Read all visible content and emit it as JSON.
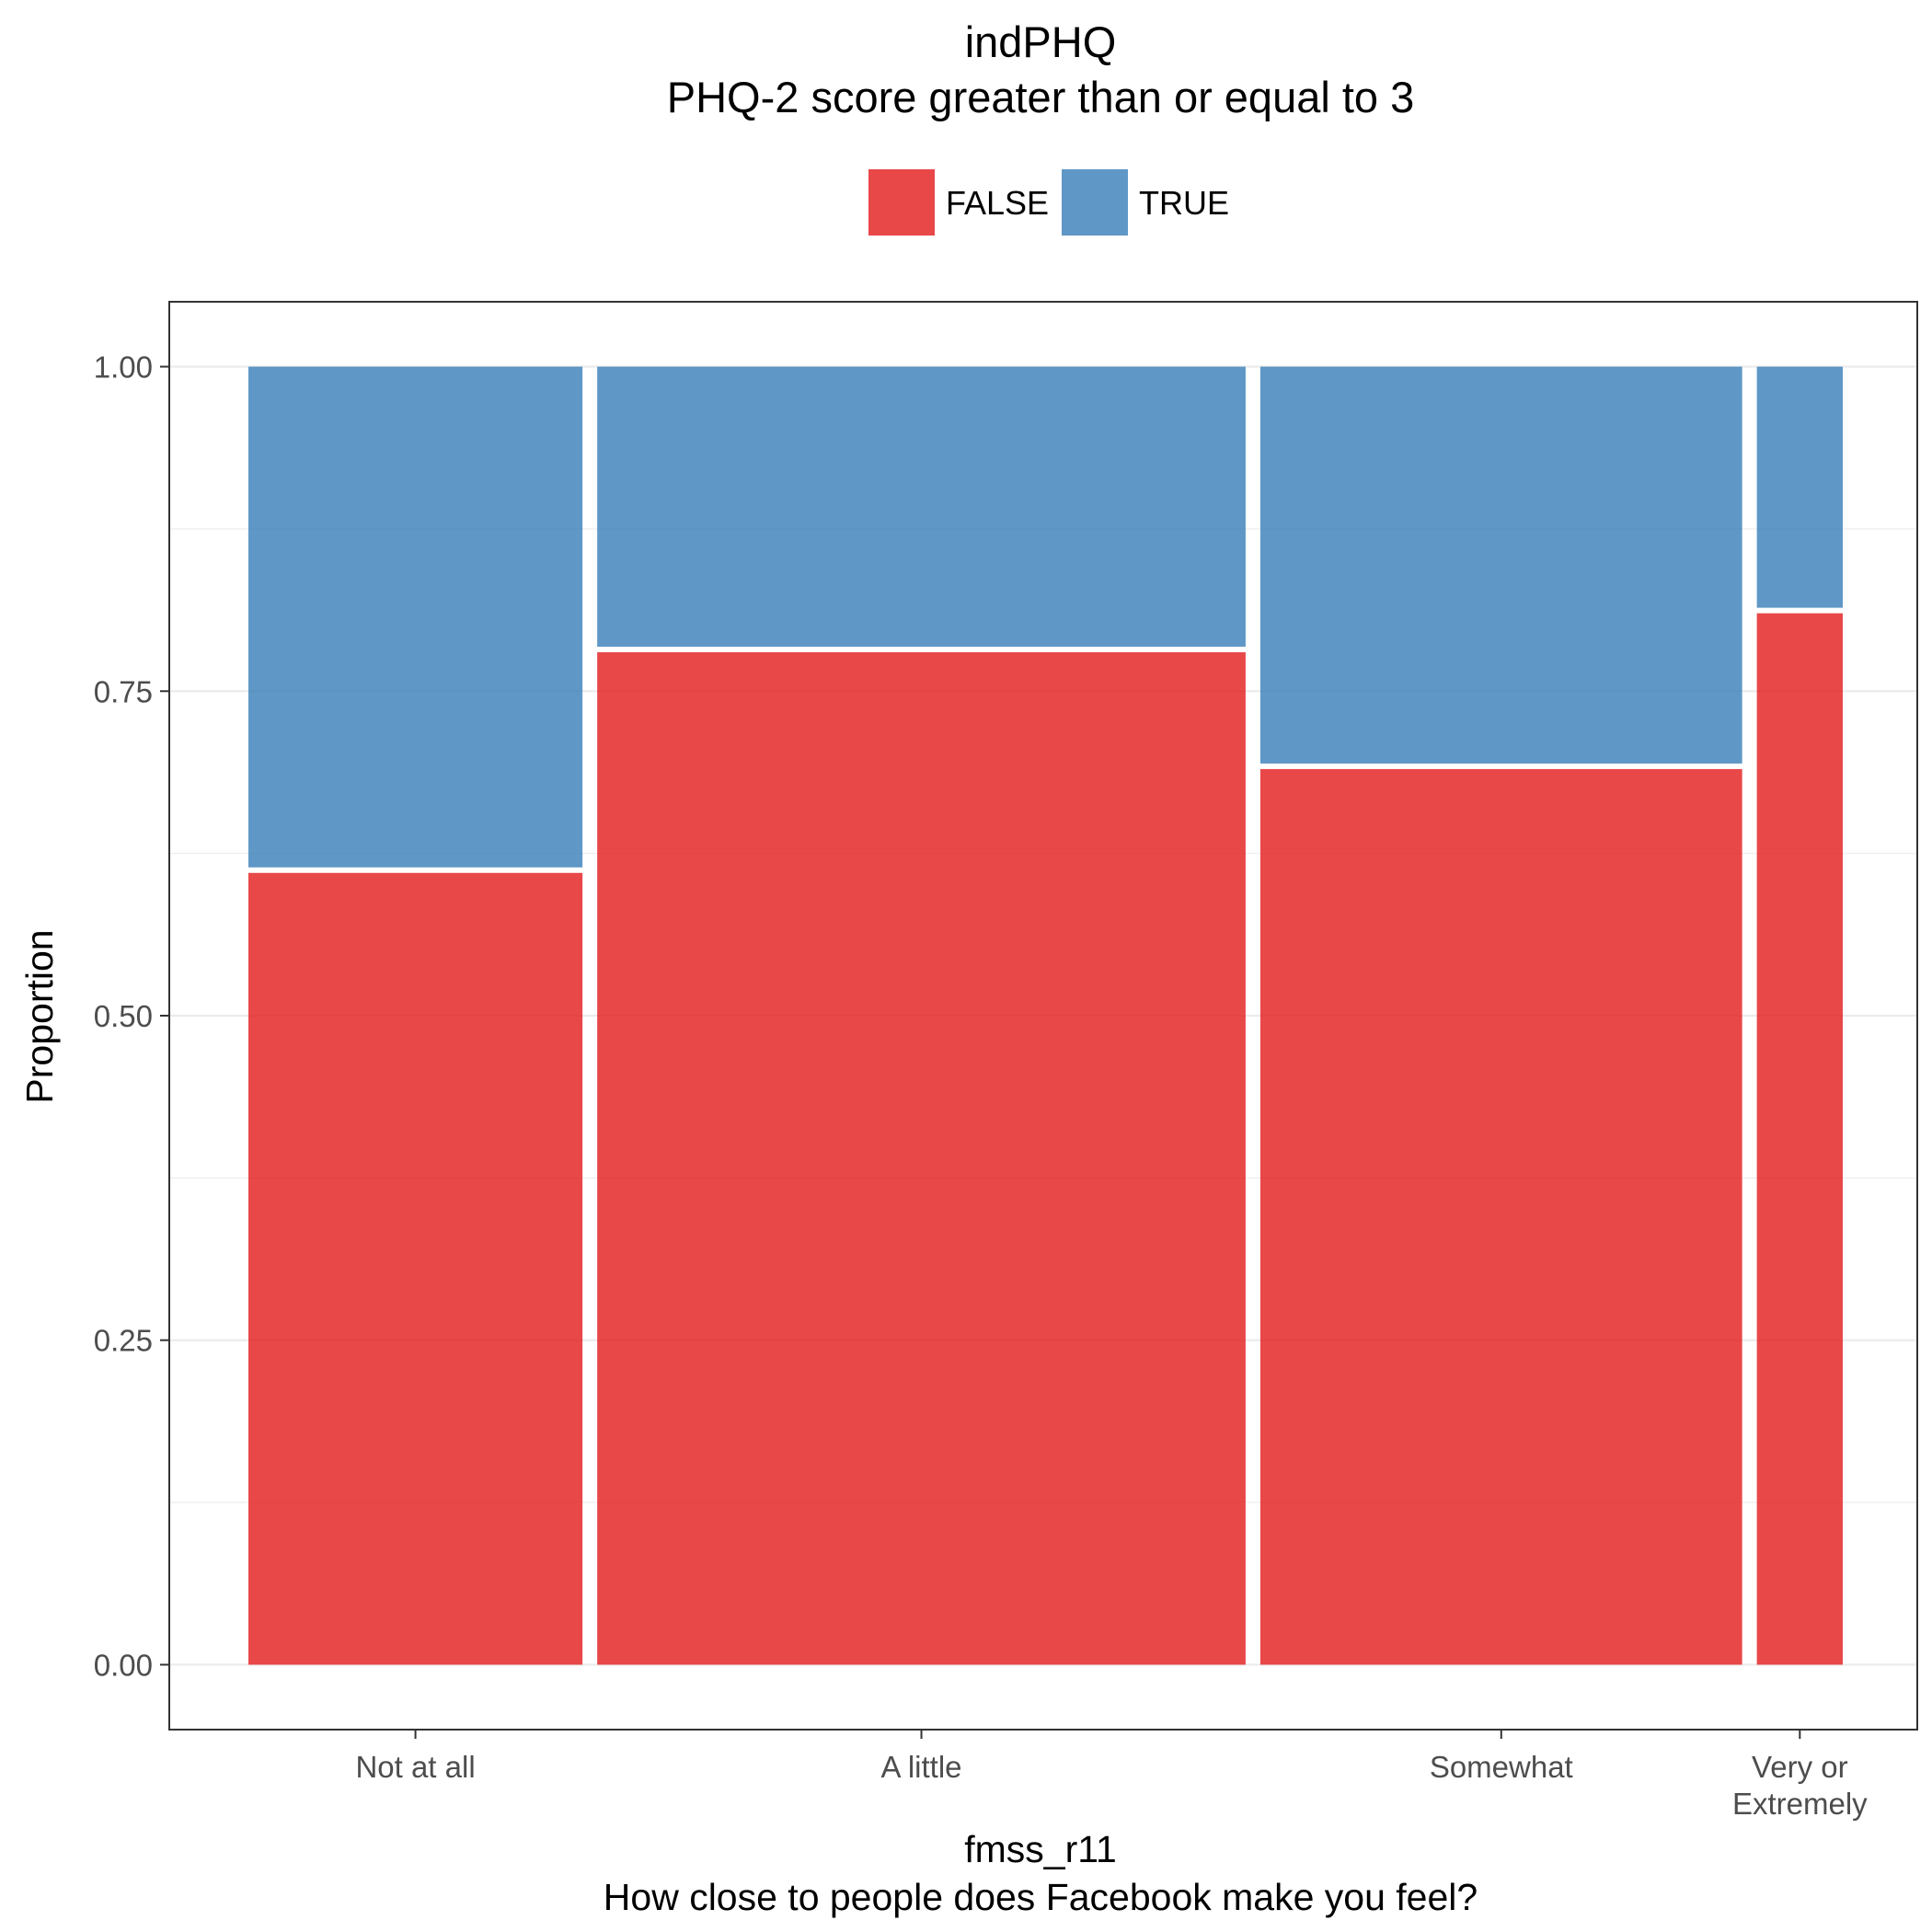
{
  "chart_data": {
    "type": "bar",
    "variant": "mosaic",
    "title": "indPHQ",
    "subtitle": "PHQ-2 score greater than or equal to 3",
    "xlabel": "fmss_r11",
    "xlabel_sub": "How close to people does Facebook make you feel?",
    "ylabel": "Proportion",
    "ylim": [
      -0.05,
      1.05
    ],
    "yticks": [
      0.0,
      0.25,
      0.5,
      0.75,
      1.0
    ],
    "ytick_labels": [
      "0.00",
      "0.25",
      "0.50",
      "0.75",
      "1.00"
    ],
    "grid": true,
    "legend_position": "top",
    "categories": [
      {
        "label": [
          "Not at all"
        ],
        "width_share": 0.2112
      },
      {
        "label": [
          "A little"
        ],
        "width_share": 0.4099
      },
      {
        "label": [
          "Somewhat"
        ],
        "width_share": 0.3046
      },
      {
        "label": [
          "Very or",
          "Extremely"
        ],
        "width_share": 0.0543
      }
    ],
    "series": [
      {
        "name": "FALSE",
        "color": "#e41a1c",
        "values": [
          0.61,
          0.78,
          0.69,
          0.81
        ]
      },
      {
        "name": "TRUE",
        "color": "#377eb8",
        "values": [
          0.39,
          0.22,
          0.31,
          0.19
        ]
      }
    ]
  }
}
